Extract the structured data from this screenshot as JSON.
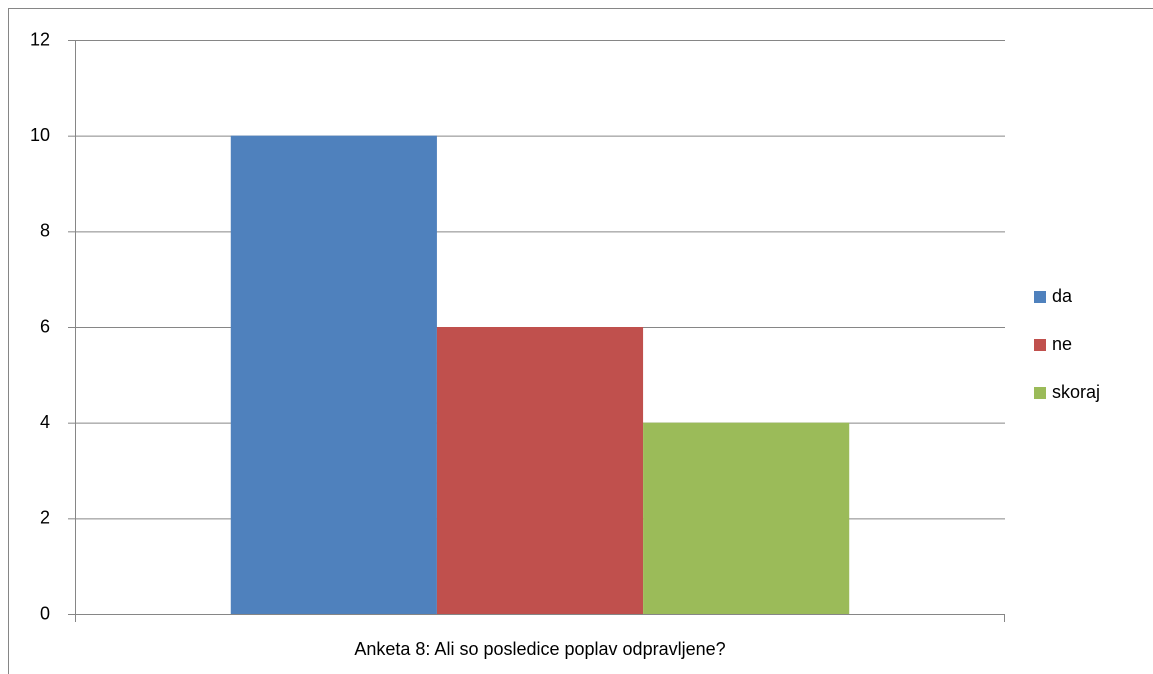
{
  "chart_data": {
    "type": "bar",
    "categories": [
      "Anketa 8: Ali so posledice poplav odpravljene?"
    ],
    "series": [
      {
        "name": "da",
        "color": "#4f81bd",
        "values": [
          10
        ]
      },
      {
        "name": "ne",
        "color": "#c0504d",
        "values": [
          6
        ]
      },
      {
        "name": "skoraj",
        "color": "#9bbb59",
        "values": [
          4
        ]
      }
    ],
    "ylim": [
      0,
      12
    ],
    "yticks": [
      0,
      2,
      4,
      6,
      8,
      10,
      12
    ],
    "grid": true,
    "legend": "right"
  }
}
